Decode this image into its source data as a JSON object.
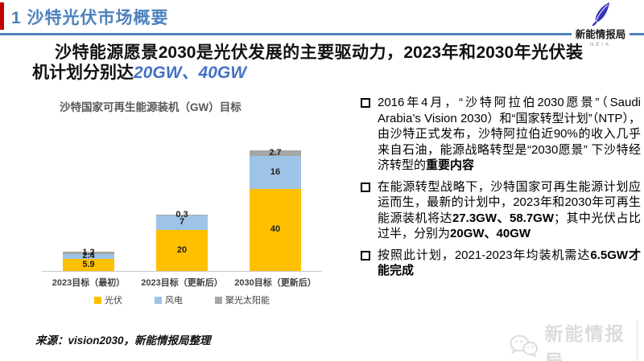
{
  "header": {
    "title": "1 沙特光伏市场概要",
    "logo_name": "新能情报局",
    "logo_sub": "NEIA"
  },
  "headline": {
    "text_main": "沙特能源愿景2030是光伏发展的主要驱动力，2023年和2030年光伏装机计划分别达",
    "text_highlight": "20GW、40GW"
  },
  "chart_data": {
    "type": "bar",
    "stacked": true,
    "title": "沙特国家可再生能源装机（GW）目标",
    "unit": "GW",
    "categories": [
      "2023目标（最初）",
      "2023目标（更新后）",
      "2030目标（更新后）"
    ],
    "series": [
      {
        "name": "光伏",
        "color": "#FFC000",
        "values": [
          5.9,
          20,
          40
        ]
      },
      {
        "name": "风电",
        "color": "#9DC3E6",
        "values": [
          2.4,
          7,
          16
        ]
      },
      {
        "name": "聚光太阳能",
        "color": "#A6A6A6",
        "values": [
          1.2,
          0.3,
          2.7
        ]
      }
    ],
    "legend_position": "bottom",
    "grid": false
  },
  "bullets": [
    {
      "segments": [
        {
          "text": "2016年4月，“沙特阿拉伯2030愿景”（Saudi Arabia’s Vision 2030）和“国家转型计划”（NTP），由沙特正式发布，沙特阿拉伯近90%的收入几乎来自石油，能源战略转型是“2030愿景” 下沙特经济转型的",
          "bold": false
        },
        {
          "text": "重要内容",
          "bold": true
        }
      ]
    },
    {
      "segments": [
        {
          "text": "在能源转型战略下，沙特国家可再生能源计划应运而生，最新的计划中，2023年和2030年可再生能源装机将达",
          "bold": false
        },
        {
          "text": "27.3GW、58.7GW",
          "bold": true
        },
        {
          "text": "；其中光伏占比过半，分别为",
          "bold": false
        },
        {
          "text": "20GW、40GW",
          "bold": true
        }
      ]
    },
    {
      "segments": [
        {
          "text": "按照此计划，2021-2023年均装机需达",
          "bold": false
        },
        {
          "text": "6.5GW才能完成",
          "bold": true
        }
      ]
    }
  ],
  "footer": {
    "source": "来源：vision2030，新能情报局整理",
    "watermark": "新能情报局"
  },
  "colors": {
    "accent_red": "#C00000",
    "accent_blue": "#4E81BD",
    "highlight_blue": "#4472C4",
    "bar_yellow": "#FFC000",
    "bar_blue": "#9DC3E6",
    "bar_gray": "#A6A6A6",
    "feather_blue": "#3434BC",
    "watermark_gray": "#DCDCDC"
  }
}
